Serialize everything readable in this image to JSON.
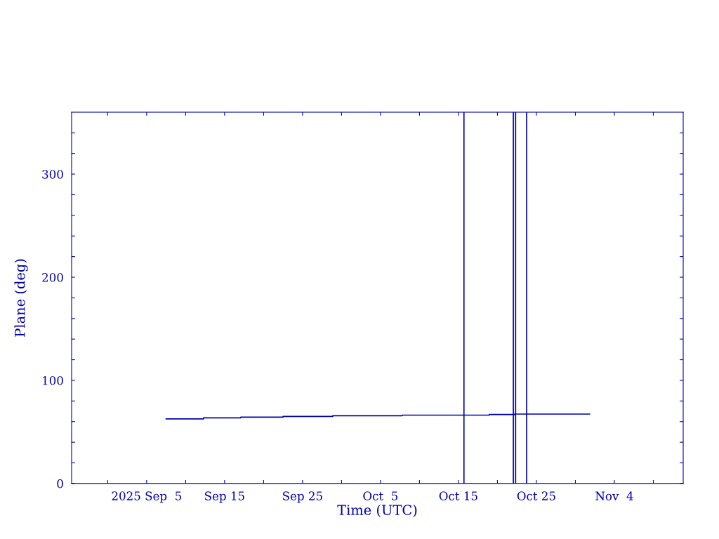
{
  "chart_data": {
    "type": "step",
    "xlabel": "Time (UTC)",
    "ylabel": "Plane (deg)",
    "x": [
      "2025-09-07T12:00",
      "2025-09-12T07:00",
      "2025-09-17T02:00",
      "2025-09-22T12:00",
      "2025-09-28T21:00",
      "2025-10-07T19:00",
      "2025-10-18T23:00",
      "2025-10-22T05:00",
      "2025-10-31T20:00"
    ],
    "series": [
      {
        "color": "#0000b0",
        "values": [
          62.6,
          63.6,
          64.3,
          65.0,
          65.7,
          66.3,
          66.9,
          67.3,
          67.3
        ]
      }
    ],
    "xlim": [
      "2025-08-26T09:00",
      "2025-11-12T20:00"
    ],
    "xticks": [
      {
        "value": "2025-08-31",
        "label": null
      },
      {
        "value": "2025-09-05",
        "label": "2025 Sep  5"
      },
      {
        "value": "2025-09-10",
        "label": null
      },
      {
        "value": "2025-09-15",
        "label": "Sep 15"
      },
      {
        "value": "2025-09-20",
        "label": null
      },
      {
        "value": "2025-09-25",
        "label": "Sep 25"
      },
      {
        "value": "2025-09-30",
        "label": null
      },
      {
        "value": "2025-10-05",
        "label": "Oct  5"
      },
      {
        "value": "2025-10-10",
        "label": null
      },
      {
        "value": "2025-10-15",
        "label": "Oct 15"
      },
      {
        "value": "2025-10-20",
        "label": null
      },
      {
        "value": "2025-10-25",
        "label": "Oct 25"
      },
      {
        "value": "2025-10-30",
        "label": null
      },
      {
        "value": "2025-11-04",
        "label": "Nov  4"
      },
      {
        "value": "2025-11-09",
        "label": null
      }
    ],
    "ylim": [
      0,
      360
    ],
    "yticks": [
      0,
      {
        "value": 20,
        "label": null
      },
      {
        "value": 40,
        "label": null
      },
      {
        "value": 60,
        "label": null
      },
      {
        "value": 80,
        "label": null
      },
      100,
      {
        "value": 120,
        "label": null
      },
      {
        "value": 140,
        "label": null
      },
      {
        "value": 160,
        "label": null
      },
      {
        "value": 180,
        "label": null
      },
      200,
      {
        "value": 220,
        "label": null
      },
      {
        "value": 240,
        "label": null
      },
      {
        "value": 260,
        "label": null
      },
      {
        "value": 280,
        "label": null
      },
      300,
      {
        "value": 320,
        "label": null
      },
      {
        "value": 340,
        "label": null
      }
    ],
    "ref_lines": [
      {
        "axis": "x",
        "value": "2025-10-15T17:00",
        "color": "#0000b0"
      },
      {
        "axis": "x",
        "value": "2025-10-22T01:00",
        "color": "#0000b0"
      },
      {
        "axis": "x",
        "value": "2025-10-22T08:00",
        "color": "#0000b0"
      },
      {
        "axis": "x",
        "value": "2025-10-23T18:00",
        "color": "#0000b0"
      }
    ],
    "grid": false
  }
}
